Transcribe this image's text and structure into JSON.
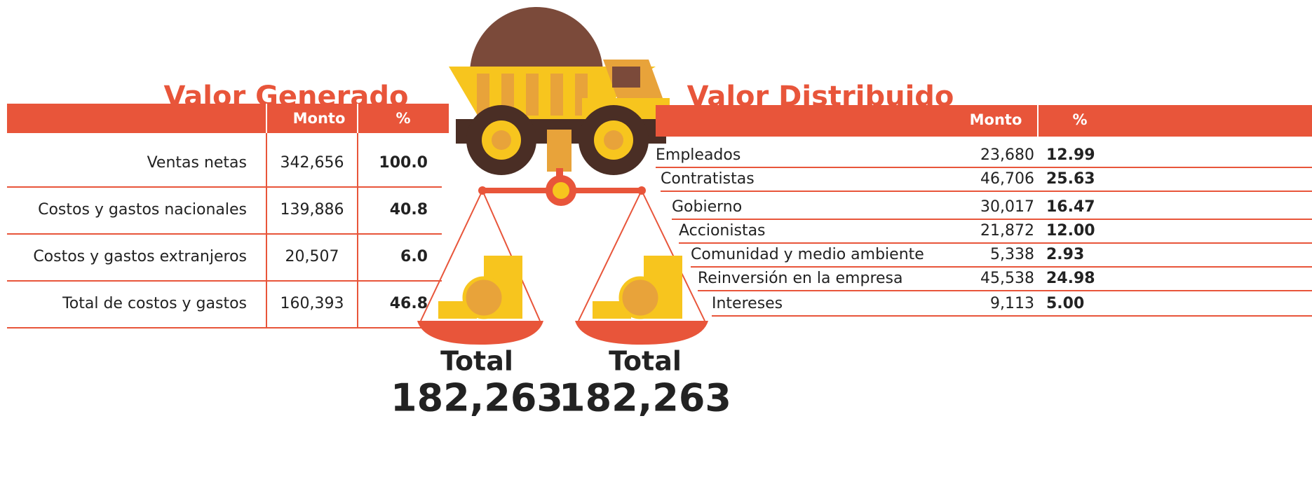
{
  "generado": {
    "title": "Valor Generado",
    "headers": [
      "Monto",
      "%"
    ],
    "rows": [
      [
        "Ventas netas",
        "342,656",
        "100.0"
      ],
      [
        "Costos y gastos nacionales",
        "139,886",
        "40.8"
      ],
      [
        "Costos y gastos extranjeros",
        "20,507",
        "6.0"
      ],
      [
        "Total de costos y gastos",
        "160,393",
        "46.8"
      ]
    ],
    "total_label": "Total",
    "total": "182,263"
  },
  "distribuido": {
    "title": "Valor Distribuido",
    "headers": [
      "Monto",
      "%"
    ],
    "rows": [
      [
        "Empleados",
        "23,680",
        "12.99"
      ],
      [
        "Contratistas",
        "46,706",
        "25.63"
      ],
      [
        "Gobierno",
        "30,017",
        "16.47"
      ],
      [
        "Accionistas",
        "21,872",
        "12.00"
      ],
      [
        "Comunidad y medio ambiente",
        "5,338",
        "2.93"
      ],
      [
        "Reinversión en la empresa",
        "45,538",
        "24.98"
      ],
      [
        "Intereses",
        "9,113",
        "5.00"
      ]
    ],
    "total_label": "Total",
    "total": "182,263"
  }
}
